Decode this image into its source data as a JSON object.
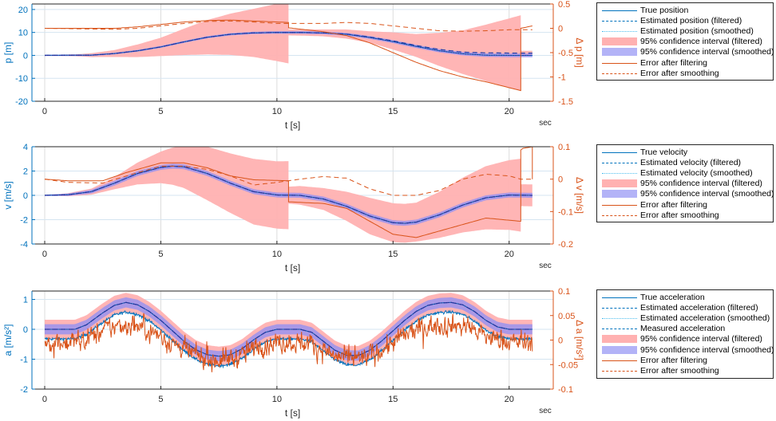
{
  "colors": {
    "blue": "#0072BD",
    "orange": "#D95319",
    "ci_filtered": "#ffb1b1",
    "ci_smoothed": "#9a93ee",
    "grid_h": "#d5e5f1",
    "grid_v": "#dcdcdc",
    "light_blue": "#4DBEEE"
  },
  "chart_data": [
    {
      "type": "line",
      "xlabel": "t [s]",
      "unit_label": "sec",
      "ylabel_left": "p [m]",
      "ylabel_right": "Δ p [m]",
      "xlim": [
        -0.55,
        21.9
      ],
      "ylim_left": [
        -20,
        22.4
      ],
      "ylim_right": [
        -1.5,
        0.5
      ],
      "xticks": [
        0,
        5,
        10,
        15,
        20
      ],
      "yticks_left": [
        -20,
        -10,
        0,
        10,
        20
      ],
      "yticks_right": [
        -1.5,
        -1,
        -0.5,
        0,
        0.5
      ],
      "legend": {
        "placement": "outside-right",
        "entries": [
          "True position",
          "Estimated position (filtered)",
          "Estimated position (smoothed)",
          "95% confidence interval (filtered)",
          "95% confidence interval (smoothed)",
          "Error after filtering",
          "Error after smoothing"
        ]
      },
      "true": [
        [
          0,
          0
        ],
        [
          2,
          0.1
        ],
        [
          3,
          0.8
        ],
        [
          4,
          2
        ],
        [
          5,
          3.7
        ],
        [
          6,
          5.9
        ],
        [
          7,
          7.9
        ],
        [
          8,
          9.2
        ],
        [
          9,
          9.8
        ],
        [
          10,
          10
        ],
        [
          11,
          10
        ],
        [
          12,
          9.8
        ],
        [
          13,
          9.2
        ],
        [
          14,
          7.8
        ],
        [
          15,
          6
        ],
        [
          16,
          3.9
        ],
        [
          17,
          2
        ],
        [
          18,
          0.7
        ],
        [
          19,
          0.1
        ],
        [
          20,
          0
        ],
        [
          21,
          0
        ]
      ],
      "filtered": [
        [
          0,
          0
        ],
        [
          2,
          0.1
        ],
        [
          3,
          0.8
        ],
        [
          4,
          2
        ],
        [
          5,
          3.7
        ],
        [
          6,
          5.9
        ],
        [
          7,
          7.9
        ],
        [
          8,
          9.2
        ],
        [
          9,
          9.8
        ],
        [
          10,
          10
        ],
        [
          11,
          10
        ],
        [
          12,
          9.8
        ],
        [
          13,
          9.3
        ],
        [
          14,
          8
        ],
        [
          15,
          6.3
        ],
        [
          16,
          4.3
        ],
        [
          17,
          2.6
        ],
        [
          18,
          1.4
        ],
        [
          19,
          1.1
        ],
        [
          20,
          1
        ],
        [
          21,
          1
        ]
      ],
      "ci_filtered_halfwidth": [
        [
          0,
          0
        ],
        [
          1.5,
          0.5
        ],
        [
          3,
          1.5
        ],
        [
          5,
          4
        ],
        [
          7,
          7.5
        ],
        [
          9,
          10.5
        ],
        [
          10.5,
          13.5
        ],
        [
          10.5001,
          1.3
        ],
        [
          12,
          1.5
        ],
        [
          14,
          2.5
        ],
        [
          16,
          5
        ],
        [
          18,
          9.5
        ],
        [
          20.5,
          16.5
        ],
        [
          20.5001,
          1
        ],
        [
          21,
          1
        ]
      ],
      "ci_smoothed_halfwidth": [
        [
          0,
          0.3
        ],
        [
          21,
          0.8
        ]
      ],
      "error_filtered": [
        [
          0,
          0
        ],
        [
          3,
          0
        ],
        [
          4,
          0.03
        ],
        [
          5,
          0.08
        ],
        [
          6,
          0.13
        ],
        [
          7,
          0.16
        ],
        [
          8,
          0.17
        ],
        [
          9,
          0.15
        ],
        [
          10.5,
          0.12
        ],
        [
          10.5001,
          0.01
        ],
        [
          12,
          -0.07
        ],
        [
          13,
          -0.15
        ],
        [
          14,
          -0.3
        ],
        [
          15,
          -0.5
        ],
        [
          16,
          -0.7
        ],
        [
          17,
          -0.87
        ],
        [
          18,
          -1
        ],
        [
          19,
          -1.1
        ],
        [
          20.5,
          -1.28
        ],
        [
          20.5001,
          0
        ],
        [
          21,
          0.05
        ]
      ],
      "error_smoothed": [
        [
          0,
          0
        ],
        [
          3,
          -0.02
        ],
        [
          4,
          0
        ],
        [
          5,
          0.05
        ],
        [
          6,
          0.1
        ],
        [
          7,
          0.14
        ],
        [
          8,
          0.15
        ],
        [
          9,
          0.13
        ],
        [
          10,
          0.1
        ],
        [
          12,
          0.1
        ],
        [
          13,
          0.12
        ],
        [
          14,
          0.1
        ],
        [
          15,
          0.05
        ],
        [
          16,
          0
        ],
        [
          17,
          -0.05
        ],
        [
          18,
          -0.06
        ],
        [
          19,
          -0.05
        ],
        [
          20,
          -0.03
        ],
        [
          21,
          -0.03
        ]
      ]
    },
    {
      "type": "line",
      "xlabel": "t [s]",
      "unit_label": "sec",
      "ylabel_left": "v [m/s]",
      "ylabel_right": "Δ v [m/s]",
      "xlim": [
        -0.55,
        21.9
      ],
      "ylim_left": [
        -4,
        4
      ],
      "ylim_right": [
        -0.2,
        0.1
      ],
      "xticks": [
        0,
        5,
        10,
        15,
        20
      ],
      "yticks_left": [
        -4,
        -2,
        0,
        2,
        4
      ],
      "yticks_right": [
        -0.2,
        -0.1,
        0,
        0.1
      ],
      "legend": {
        "placement": "outside-right",
        "entries": [
          "True velocity",
          "Estimated velocity (filtered)",
          "Estimated velocity (smoothed)",
          "95% confidence interval (filtered)",
          "95% confidence interval (smoothed)",
          "Error after filtering",
          "Error after smoothing"
        ]
      },
      "true": [
        [
          0,
          0
        ],
        [
          1,
          0.05
        ],
        [
          2,
          0.3
        ],
        [
          3,
          1
        ],
        [
          4,
          1.8
        ],
        [
          5,
          2.3
        ],
        [
          5.5,
          2.4
        ],
        [
          6,
          2.35
        ],
        [
          7,
          1.8
        ],
        [
          8,
          1
        ],
        [
          9,
          0.3
        ],
        [
          10,
          0.03
        ],
        [
          11,
          0
        ],
        [
          12,
          -0.3
        ],
        [
          13,
          -0.9
        ],
        [
          14,
          -1.7
        ],
        [
          15,
          -2.25
        ],
        [
          15.5,
          -2.3
        ],
        [
          16,
          -2.2
        ],
        [
          17,
          -1.6
        ],
        [
          18,
          -0.8
        ],
        [
          19,
          -0.2
        ],
        [
          20,
          0.03
        ],
        [
          21,
          0
        ]
      ],
      "filtered": [
        [
          0,
          0
        ],
        [
          1,
          0.05
        ],
        [
          2,
          0.3
        ],
        [
          3,
          1
        ],
        [
          4,
          1.8
        ],
        [
          5,
          2.3
        ],
        [
          5.5,
          2.4
        ],
        [
          6,
          2.35
        ],
        [
          7,
          1.8
        ],
        [
          8,
          1
        ],
        [
          9,
          0.3
        ],
        [
          10,
          0.03
        ],
        [
          11,
          0
        ],
        [
          12,
          -0.3
        ],
        [
          13,
          -0.9
        ],
        [
          14,
          -1.7
        ],
        [
          15,
          -2.25
        ],
        [
          15.5,
          -2.3
        ],
        [
          16,
          -2.2
        ],
        [
          17,
          -1.6
        ],
        [
          18,
          -0.8
        ],
        [
          19,
          -0.2
        ],
        [
          20,
          0.03
        ],
        [
          21,
          0
        ]
      ],
      "ci_filtered_halfwidth": [
        [
          0,
          0
        ],
        [
          2,
          0.25
        ],
        [
          3,
          0.5
        ],
        [
          5,
          1.3
        ],
        [
          7,
          2.2
        ],
        [
          9,
          2.7
        ],
        [
          10.5,
          2.8
        ],
        [
          10.5001,
          0.7
        ],
        [
          12,
          0.9
        ],
        [
          14,
          1.5
        ],
        [
          15,
          1.6
        ],
        [
          16,
          1.6
        ],
        [
          17,
          1.9
        ],
        [
          19,
          2.6
        ],
        [
          20.5,
          3
        ],
        [
          20.5001,
          0.9
        ],
        [
          21,
          0.9
        ]
      ],
      "ci_smoothed_halfwidth": [
        [
          0,
          0.05
        ],
        [
          3,
          0.2
        ],
        [
          21,
          0.2
        ]
      ],
      "error_filtered": [
        [
          0,
          0
        ],
        [
          1,
          -0.005
        ],
        [
          2.5,
          -0.005
        ],
        [
          3.5,
          0.02
        ],
        [
          5,
          0.05
        ],
        [
          6,
          0.05
        ],
        [
          7,
          0.035
        ],
        [
          8,
          0.01
        ],
        [
          9,
          -0.002
        ],
        [
          10.5,
          -0.005
        ],
        [
          10.5001,
          -0.07
        ],
        [
          12,
          -0.075
        ],
        [
          13,
          -0.09
        ],
        [
          14,
          -0.13
        ],
        [
          15,
          -0.17
        ],
        [
          16,
          -0.18
        ],
        [
          17,
          -0.16
        ],
        [
          18,
          -0.14
        ],
        [
          19,
          -0.12
        ],
        [
          20.5,
          -0.13
        ],
        [
          20.5001,
          0.09
        ],
        [
          20.6,
          0.095
        ],
        [
          21,
          0.1
        ],
        [
          21.0001,
          0
        ]
      ],
      "error_smoothed": [
        [
          0,
          0
        ],
        [
          1,
          -0.01
        ],
        [
          2.5,
          -0.012
        ],
        [
          4,
          0.02
        ],
        [
          5,
          0.04
        ],
        [
          6,
          0.04
        ],
        [
          7,
          0.03
        ],
        [
          8,
          0.01
        ],
        [
          9,
          -0.018
        ],
        [
          10,
          -0.01
        ],
        [
          11,
          0
        ],
        [
          12,
          0.008
        ],
        [
          13,
          0.003
        ],
        [
          14,
          -0.03
        ],
        [
          15,
          -0.05
        ],
        [
          16,
          -0.05
        ],
        [
          17,
          -0.035
        ],
        [
          18,
          0
        ],
        [
          19,
          0.015
        ],
        [
          20,
          0.01
        ],
        [
          20.5,
          0
        ],
        [
          21,
          0
        ]
      ]
    },
    {
      "type": "line",
      "xlabel": "t [s]",
      "unit_label": "sec",
      "ylabel_left": "a [m/s²]",
      "ylabel_right": "Δ a [m/s²]",
      "xlim": [
        -0.55,
        21.9
      ],
      "ylim_left": [
        -2,
        1.28
      ],
      "ylim_right": [
        -0.1,
        0.1
      ],
      "xticks": [
        0,
        5,
        10,
        15,
        20
      ],
      "yticks_left": [
        -2,
        -1,
        0,
        1
      ],
      "yticks_right": [
        -0.1,
        -0.05,
        0,
        0.05,
        0.1
      ],
      "legend": {
        "placement": "outside-right",
        "entries": [
          "True acceleration",
          "Estimated acceleration (filtered)",
          "Estimated acceleration (smoothed)",
          "Measured acceleration",
          "95% confidence interval (filtered)",
          "95% confidence interval (smoothed)",
          "Error after filtering",
          "Error after smoothing"
        ]
      },
      "true": [
        [
          0,
          0
        ],
        [
          1.3,
          0
        ],
        [
          1.8,
          0.15
        ],
        [
          2.5,
          0.55
        ],
        [
          3,
          0.8
        ],
        [
          3.5,
          0.9
        ],
        [
          4,
          0.82
        ],
        [
          4.5,
          0.6
        ],
        [
          5,
          0.3
        ],
        [
          5.5,
          -0.05
        ],
        [
          6,
          -0.4
        ],
        [
          6.5,
          -0.68
        ],
        [
          7,
          -0.85
        ],
        [
          7.5,
          -0.9
        ],
        [
          8,
          -0.85
        ],
        [
          8.5,
          -0.65
        ],
        [
          9,
          -0.35
        ],
        [
          9.5,
          -0.1
        ],
        [
          10,
          0
        ],
        [
          11,
          0
        ],
        [
          11.5,
          -0.1
        ],
        [
          12,
          -0.4
        ],
        [
          12.5,
          -0.7
        ],
        [
          13,
          -0.87
        ],
        [
          13.5,
          -0.88
        ],
        [
          14,
          -0.7
        ],
        [
          14.5,
          -0.4
        ],
        [
          15,
          -0.05
        ],
        [
          15.5,
          0.3
        ],
        [
          16,
          0.6
        ],
        [
          16.5,
          0.8
        ],
        [
          17,
          0.88
        ],
        [
          17.5,
          0.9
        ],
        [
          18,
          0.82
        ],
        [
          18.5,
          0.6
        ],
        [
          19,
          0.3
        ],
        [
          19.5,
          0.08
        ],
        [
          20,
          0
        ],
        [
          21,
          0
        ]
      ],
      "measured_offset": -0.32,
      "measured_noise": 0.035,
      "ci_filtered_halfwidth": [
        [
          0,
          0.32
        ],
        [
          21,
          0.32
        ]
      ],
      "ci_smoothed_halfwidth": [
        [
          0,
          0.17
        ],
        [
          21,
          0.17
        ]
      ],
      "error_filtered_gain": 0.04,
      "error_filtered_noise": 0.014
    }
  ]
}
